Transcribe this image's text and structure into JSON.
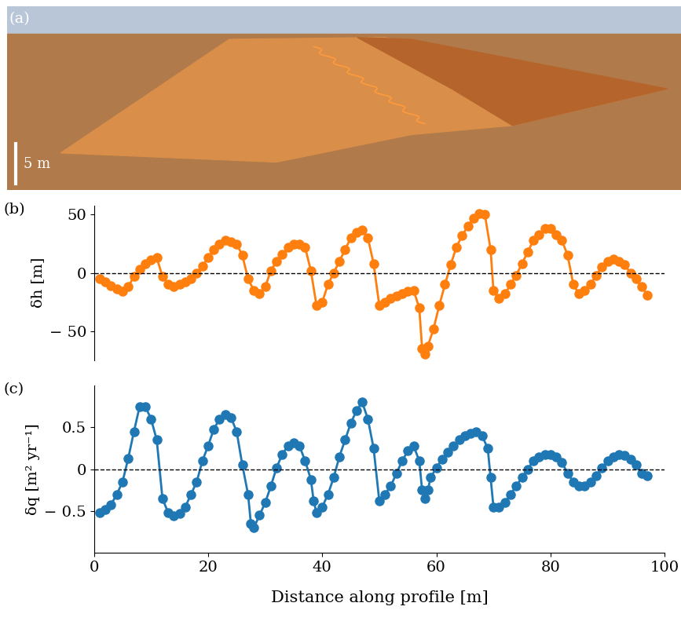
{
  "panels": {
    "a": {
      "label": "(a)",
      "scale_bar": "5 m"
    }
  },
  "chart_data": [
    {
      "type": "line",
      "panel_label": "(b)",
      "ylabel": "δh [m]",
      "color": "#ff7f0e",
      "marker": "o",
      "line_style": "solid",
      "hline": 0,
      "xlim": [
        0,
        100
      ],
      "ylim": [
        -75,
        58
      ],
      "yticks": [
        {
          "value": -50,
          "label": "− 50"
        },
        0,
        50
      ],
      "tick_labels": "y",
      "x": [
        1,
        2,
        3,
        4,
        5,
        6,
        7,
        8,
        9,
        10,
        11,
        12,
        13,
        14,
        15,
        16,
        17,
        18,
        19,
        20,
        21,
        22,
        23,
        24,
        25,
        26,
        27,
        28,
        29,
        30,
        31,
        32,
        33,
        34,
        35,
        36,
        37,
        38,
        39,
        40,
        41,
        42,
        43,
        44,
        45,
        46,
        47,
        48,
        49,
        50,
        51,
        52,
        53,
        54,
        55,
        56,
        57,
        57.5,
        58,
        58.5,
        59.5,
        60.5,
        61.5,
        62.5,
        63.5,
        64.5,
        65.5,
        66.5,
        67.5,
        68.5,
        69.5,
        70,
        71,
        72,
        73,
        74,
        75,
        76,
        77,
        78,
        79,
        80,
        81,
        82,
        83,
        84,
        85,
        86,
        87,
        88,
        89,
        90,
        91,
        92,
        93,
        94,
        95,
        96,
        97
      ],
      "values": [
        -5,
        -8,
        -11,
        -14,
        -16,
        -12,
        -3,
        3,
        8,
        11,
        13,
        -3,
        -10,
        -12,
        -10,
        -8,
        -5,
        0,
        6,
        13,
        20,
        25,
        28,
        27,
        25,
        15,
        -5,
        -15,
        -18,
        -12,
        2,
        10,
        16,
        22,
        25,
        25,
        22,
        2,
        -28,
        -25,
        -10,
        0,
        10,
        20,
        30,
        35,
        37,
        30,
        8,
        -28,
        -25,
        -22,
        -20,
        -18,
        -16,
        -15,
        -30,
        -65,
        -70,
        -63,
        -48,
        -28,
        -10,
        7,
        22,
        32,
        40,
        47,
        51,
        50,
        20,
        -15,
        -22,
        -18,
        -10,
        -2,
        8,
        18,
        28,
        33,
        38,
        38,
        33,
        28,
        15,
        -10,
        -18,
        -15,
        -10,
        -2,
        5,
        10,
        12,
        10,
        7,
        0,
        -5,
        -12,
        -19
      ]
    },
    {
      "type": "line",
      "panel_label": "(c)",
      "ylabel": "δq [m² yr⁻¹]",
      "xlabel": "Distance along profile [m]",
      "color": "#1f77b4",
      "marker": "o",
      "line_style": "solid",
      "hline": 0,
      "xlim": [
        0,
        100
      ],
      "ylim": [
        -1.0,
        1.0
      ],
      "xticks": [
        0,
        20,
        40,
        60,
        80,
        100
      ],
      "yticks": [
        {
          "value": -0.5,
          "label": "− 0.5"
        },
        0,
        0.5
      ],
      "x": [
        1,
        2,
        3,
        4,
        5,
        6,
        7,
        8,
        9,
        10,
        11,
        12,
        13,
        14,
        15,
        16,
        17,
        18,
        19,
        20,
        21,
        22,
        23,
        24,
        25,
        26,
        27,
        27.5,
        28,
        29,
        30,
        31,
        32,
        33,
        34,
        35,
        36,
        37,
        38,
        38.5,
        39,
        40,
        41,
        42,
        43,
        44,
        45,
        46,
        47,
        48,
        49,
        50,
        51,
        52,
        53,
        54,
        55,
        56,
        57,
        57.5,
        58,
        58.5,
        59,
        60,
        61,
        62,
        63,
        64,
        65,
        66,
        67,
        68,
        69,
        69.5,
        70,
        71,
        72,
        73,
        74,
        75,
        76,
        77,
        78,
        79,
        80,
        81,
        82,
        83,
        84,
        85,
        86,
        87,
        88,
        89,
        90,
        91,
        92,
        93,
        94,
        95,
        96,
        97
      ],
      "values": [
        -0.52,
        -0.48,
        -0.42,
        -0.3,
        -0.15,
        0.13,
        0.45,
        0.75,
        0.75,
        0.6,
        0.35,
        -0.35,
        -0.52,
        -0.56,
        -0.53,
        -0.45,
        -0.3,
        -0.15,
        0.1,
        0.28,
        0.48,
        0.6,
        0.65,
        0.62,
        0.45,
        0.05,
        -0.3,
        -0.65,
        -0.7,
        -0.55,
        -0.4,
        -0.2,
        0.02,
        0.18,
        0.28,
        0.32,
        0.28,
        0.1,
        -0.12,
        -0.38,
        -0.52,
        -0.45,
        -0.3,
        -0.1,
        0.15,
        0.35,
        0.55,
        0.7,
        0.8,
        0.6,
        0.25,
        -0.38,
        -0.3,
        -0.2,
        -0.05,
        0.1,
        0.22,
        0.28,
        0.1,
        -0.25,
        -0.35,
        -0.25,
        -0.1,
        0.02,
        0.12,
        0.2,
        0.28,
        0.35,
        0.4,
        0.43,
        0.45,
        0.4,
        0.25,
        -0.1,
        -0.45,
        -0.45,
        -0.4,
        -0.3,
        -0.2,
        -0.1,
        0.0,
        0.1,
        0.15,
        0.18,
        0.18,
        0.15,
        0.08,
        -0.05,
        -0.15,
        -0.2,
        -0.2,
        -0.15,
        -0.08,
        0.02,
        0.1,
        0.15,
        0.18,
        0.17,
        0.12,
        0.05,
        -0.05,
        -0.08
      ]
    }
  ]
}
